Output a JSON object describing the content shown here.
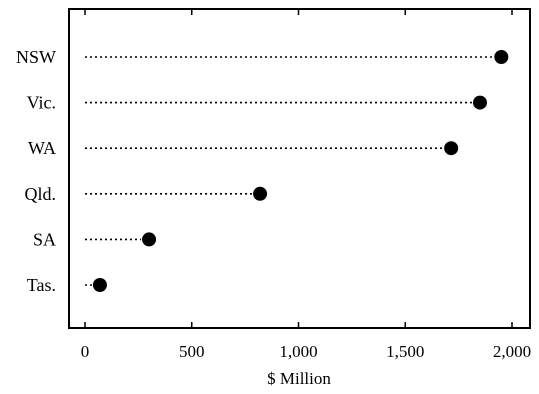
{
  "chart_data": {
    "type": "dot",
    "categories": [
      "NSW",
      "Vic.",
      "WA",
      "Qld.",
      "SA",
      "Tas."
    ],
    "values": [
      1950,
      1850,
      1715,
      820,
      300,
      70
    ],
    "xlabel": "$ Million",
    "ylabel": "",
    "xlim": [
      -50,
      2050
    ],
    "xticks": [
      0,
      500,
      1000,
      1500,
      2000
    ],
    "xtick_labels": [
      "0",
      "500",
      "1,000",
      "1,500",
      "2,000"
    ],
    "grid": false,
    "leader_lines": "dotted"
  }
}
